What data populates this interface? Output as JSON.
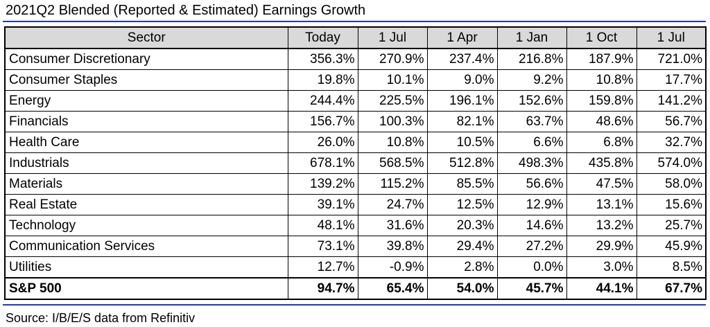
{
  "title": "2021Q2 Blended (Reported & Estimated) Earnings Growth",
  "source": "Source: I/B/E/S data from Refinitiv",
  "table": {
    "headers": [
      "Sector",
      "Today",
      "1 Jul",
      "1 Apr",
      "1 Jan",
      "1 Oct",
      "1 Jul"
    ],
    "rows": [
      {
        "sector": "Consumer Discretionary",
        "values": [
          "356.3%",
          "270.9%",
          "237.4%",
          "216.8%",
          "187.9%",
          "721.0%"
        ]
      },
      {
        "sector": "Consumer Staples",
        "values": [
          "19.8%",
          "10.1%",
          "9.0%",
          "9.2%",
          "10.8%",
          "17.7%"
        ]
      },
      {
        "sector": "Energy",
        "values": [
          "244.4%",
          "225.5%",
          "196.1%",
          "152.6%",
          "159.8%",
          "141.2%"
        ]
      },
      {
        "sector": "Financials",
        "values": [
          "156.7%",
          "100.3%",
          "82.1%",
          "63.7%",
          "48.6%",
          "56.7%"
        ]
      },
      {
        "sector": "Health Care",
        "values": [
          "26.0%",
          "10.8%",
          "10.5%",
          "6.6%",
          "6.8%",
          "32.7%"
        ]
      },
      {
        "sector": "Industrials",
        "values": [
          "678.1%",
          "568.5%",
          "512.8%",
          "498.3%",
          "435.8%",
          "574.0%"
        ]
      },
      {
        "sector": "Materials",
        "values": [
          "139.2%",
          "115.2%",
          "85.5%",
          "56.6%",
          "47.5%",
          "58.0%"
        ]
      },
      {
        "sector": "Real Estate",
        "values": [
          "39.1%",
          "24.7%",
          "12.5%",
          "12.9%",
          "13.1%",
          "15.6%"
        ]
      },
      {
        "sector": "Technology",
        "values": [
          "48.1%",
          "31.6%",
          "20.3%",
          "14.6%",
          "13.2%",
          "25.7%"
        ]
      },
      {
        "sector": "Communication Services",
        "values": [
          "73.1%",
          "39.8%",
          "29.4%",
          "27.2%",
          "29.9%",
          "45.9%"
        ]
      },
      {
        "sector": "Utilities",
        "values": [
          "12.7%",
          "-0.9%",
          "2.8%",
          "0.0%",
          "3.0%",
          "8.5%"
        ]
      }
    ],
    "total": {
      "sector": "S&P 500",
      "values": [
        "94.7%",
        "65.4%",
        "54.0%",
        "45.7%",
        "44.1%",
        "67.7%"
      ]
    }
  },
  "colors": {
    "rule": "#1f35c9",
    "header_bg": "#d9d9d9"
  }
}
